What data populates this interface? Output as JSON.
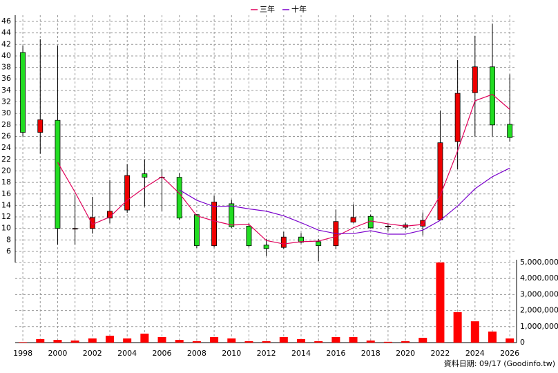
{
  "chart_data": [
    {
      "type": "candlestick",
      "annotation": "資料日期: 09/17 (Goodinfo.tw)",
      "x": [
        1998,
        1999,
        2000,
        2001,
        2002,
        2003,
        2004,
        2005,
        2006,
        2007,
        2008,
        2009,
        2010,
        2011,
        2012,
        2013,
        2014,
        2015,
        2016,
        2017,
        2018,
        2019,
        2020,
        2021,
        2022,
        2023,
        2024,
        2025,
        2026
      ],
      "xticks": [
        1998,
        2000,
        2002,
        2004,
        2006,
        2008,
        2010,
        2012,
        2014,
        2016,
        2018,
        2020,
        2022,
        2024,
        2026
      ],
      "xlim": [
        1997.56,
        2026.39
      ],
      "open": [
        40.6,
        26.7,
        28.8,
        10,
        10,
        11.8,
        13.2,
        19.5,
        18.9,
        18.9,
        12.4,
        7,
        14.3,
        10.4,
        7.1,
        6.7,
        8.5,
        7.7,
        7,
        11.1,
        12.1,
        10.4,
        10.2,
        10.4,
        11.5,
        25.1,
        33.6,
        38.1,
        28.1
      ],
      "close": [
        26.7,
        28.9,
        10,
        10,
        11.9,
        13,
        19.2,
        18.9,
        18.9,
        11.8,
        7,
        14.6,
        10.3,
        7,
        6.5,
        8.5,
        7.6,
        7,
        11.2,
        11.9,
        10.1,
        10.4,
        10.6,
        11.4,
        24.9,
        33.5,
        38.1,
        28,
        25.8
      ],
      "high": [
        41.8,
        42.9,
        41.8,
        15.8,
        15.5,
        18.4,
        21.2,
        22,
        20.3,
        19.6,
        12.5,
        15.7,
        15,
        10.9,
        8.2,
        9.4,
        9.2,
        8.2,
        13.3,
        14.2,
        12.4,
        10.7,
        11,
        12.8,
        30.5,
        39.3,
        43.5,
        45.6,
        36.8
      ],
      "low": [
        26,
        23,
        7.2,
        7.2,
        9.1,
        10.9,
        12.7,
        13.8,
        13,
        11.5,
        6.6,
        6.7,
        10.1,
        6.7,
        5.2,
        6.4,
        7.4,
        4.3,
        6.4,
        11,
        10,
        9.5,
        9.8,
        8.8,
        11.4,
        20.3,
        26,
        26,
        25.1
      ],
      "up_color": "#ee0000",
      "down_color": "#22dd22",
      "series": [
        {
          "name": "三年",
          "color": "#e0005a",
          "values": [
            null,
            null,
            21.5,
            16.3,
            10.7,
            12,
            14.9,
            17.1,
            19,
            16.1,
            12.2,
            11.3,
            10.6,
            10.7,
            7.9,
            7.3,
            7.7,
            7.8,
            8.6,
            10.1,
            11.3,
            10.8,
            10.4,
            10.7,
            15.7,
            23.5,
            32.2,
            33.3,
            30.7
          ]
        },
        {
          "name": "十年",
          "color": "#7a00cc",
          "values": [
            null,
            null,
            null,
            null,
            null,
            null,
            null,
            null,
            null,
            16.7,
            14.9,
            13.8,
            13.9,
            13.4,
            13,
            12.2,
            11,
            9.7,
            9.1,
            9.1,
            9.6,
            9,
            9,
            9.7,
            11.4,
            13.9,
            16.9,
            19,
            20.5
          ]
        }
      ],
      "ylim": [
        4.56,
        47.08
      ],
      "yticks": [
        6,
        8,
        10,
        12,
        14,
        16,
        18,
        20,
        22,
        24,
        26,
        28,
        30,
        32,
        34,
        36,
        38,
        40,
        42,
        44,
        46
      ],
      "grid": true
    },
    {
      "type": "bar",
      "color": "#ff0000",
      "values": [
        30000,
        215000,
        170000,
        130000,
        260000,
        430000,
        260000,
        560000,
        345000,
        170000,
        90000,
        345000,
        260000,
        90000,
        90000,
        345000,
        215000,
        90000,
        345000,
        345000,
        130000,
        50000,
        90000,
        300000,
        5000000,
        1900000,
        1330000,
        690000,
        260000
      ],
      "ylim": [
        0,
        5172000
      ],
      "yticks": [
        0,
        {
          "value": 1000000,
          "label": "1,000,000"
        },
        {
          "value": 2000000,
          "label": "2,000,000"
        },
        {
          "value": 3000000,
          "label": "3,000,000"
        },
        {
          "value": 4000000,
          "label": "4,000,000"
        },
        {
          "value": 5000000,
          "label": "5,000,000"
        }
      ],
      "grid": true
    }
  ]
}
